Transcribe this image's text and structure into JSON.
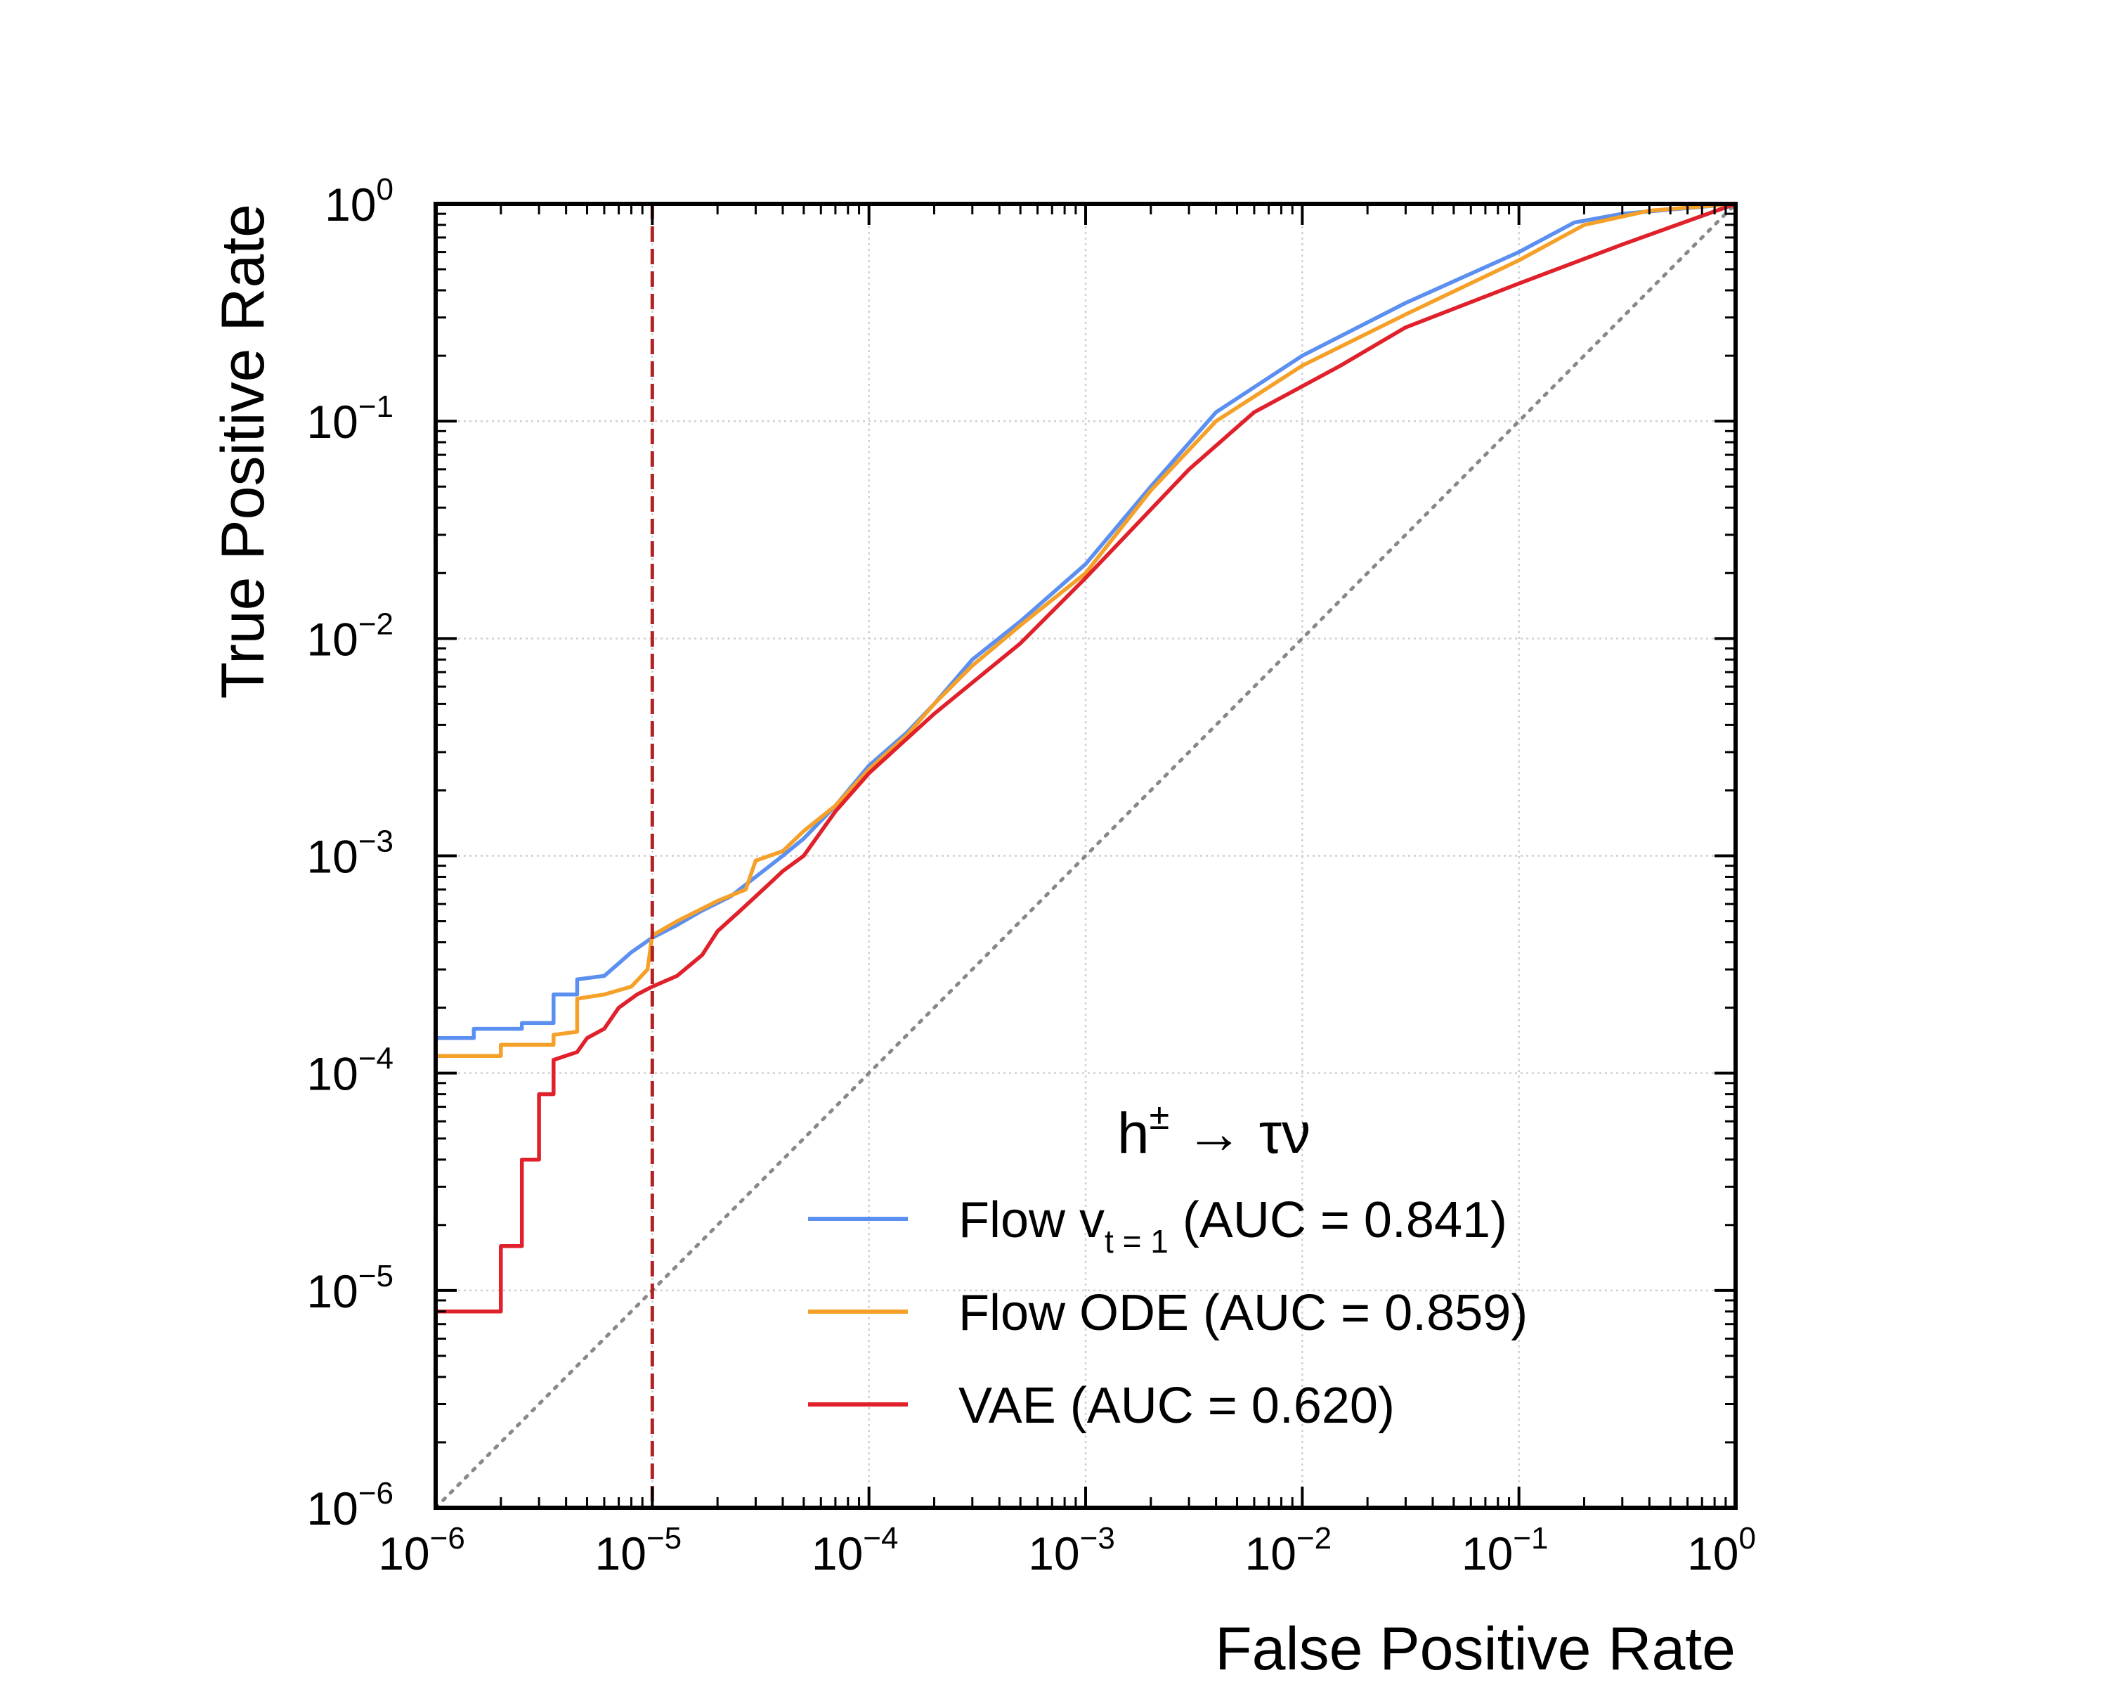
{
  "chart_data": {
    "type": "line",
    "title": "",
    "xlabel": "False Positive Rate",
    "ylabel": "True Positive Rate",
    "xscale": "log",
    "yscale": "log",
    "xlim": [
      1e-06,
      1
    ],
    "ylim": [
      1e-06,
      1
    ],
    "grid": true,
    "x_tick_exponents": [
      -6,
      -5,
      -4,
      -3,
      -2,
      -1,
      0
    ],
    "y_tick_exponents": [
      -6,
      -5,
      -4,
      -3,
      -2,
      -1,
      0
    ],
    "tick_base": "10",
    "legend": {
      "placement": "lower-right",
      "title_main": "h",
      "title_sup": "±",
      "title_rest": " → τν"
    },
    "reference_line": {
      "x": 1e-05,
      "color": "#b22222",
      "style": "dashed"
    },
    "diagonal": {
      "color": "#888888",
      "style": "dotted"
    },
    "series": [
      {
        "name": "Flow v",
        "name_sub": "t = 1",
        "name_suffix": " (AUC = 0.841)",
        "color": "#5b8ff0",
        "points": [
          [
            1e-06,
            0.000145
          ],
          [
            1.5e-06,
            0.000145
          ],
          [
            1.5e-06,
            0.00016
          ],
          [
            2.5e-06,
            0.00016
          ],
          [
            2.5e-06,
            0.00017
          ],
          [
            3.5e-06,
            0.00017
          ],
          [
            3.5e-06,
            0.00023
          ],
          [
            4.5e-06,
            0.00023
          ],
          [
            4.5e-06,
            0.00027
          ],
          [
            6e-06,
            0.00028
          ],
          [
            7e-06,
            0.00032
          ],
          [
            8e-06,
            0.00036
          ],
          [
            1e-05,
            0.00042
          ],
          [
            1.3e-05,
            0.00048
          ],
          [
            1.7e-05,
            0.00056
          ],
          [
            2.3e-05,
            0.00065
          ],
          [
            3e-05,
            0.0008
          ],
          [
            4e-05,
            0.001
          ],
          [
            5e-05,
            0.0012
          ],
          [
            7e-05,
            0.0017
          ],
          [
            0.0001,
            0.0026
          ],
          [
            0.00015,
            0.0037
          ],
          [
            0.0002,
            0.005
          ],
          [
            0.0003,
            0.008
          ],
          [
            0.0005,
            0.012
          ],
          [
            0.001,
            0.022
          ],
          [
            0.002,
            0.05
          ],
          [
            0.004,
            0.11
          ],
          [
            0.01,
            0.2
          ],
          [
            0.03,
            0.35
          ],
          [
            0.1,
            0.6
          ],
          [
            0.18,
            0.82
          ],
          [
            0.3,
            0.9
          ],
          [
            1,
            1
          ]
        ]
      },
      {
        "name": "Flow ODE",
        "name_sub": "",
        "name_suffix": " (AUC = 0.859)",
        "color": "#f5a028",
        "points": [
          [
            1e-06,
            0.00012
          ],
          [
            2e-06,
            0.00012
          ],
          [
            2e-06,
            0.000135
          ],
          [
            3.5e-06,
            0.000135
          ],
          [
            3.5e-06,
            0.00015
          ],
          [
            4.5e-06,
            0.000155
          ],
          [
            4.5e-06,
            0.00022
          ],
          [
            6e-06,
            0.00023
          ],
          [
            8e-06,
            0.00025
          ],
          [
            9.5e-06,
            0.0003
          ],
          [
            1e-05,
            0.00043
          ],
          [
            1.3e-05,
            0.0005
          ],
          [
            2e-05,
            0.00062
          ],
          [
            2.7e-05,
            0.0007
          ],
          [
            3e-05,
            0.00095
          ],
          [
            4e-05,
            0.00105
          ],
          [
            5e-05,
            0.0013
          ],
          [
            7e-05,
            0.0017
          ],
          [
            0.0001,
            0.0025
          ],
          [
            0.00015,
            0.0036
          ],
          [
            0.0002,
            0.005
          ],
          [
            0.0003,
            0.0075
          ],
          [
            0.0005,
            0.0115
          ],
          [
            0.001,
            0.02
          ],
          [
            0.002,
            0.048
          ],
          [
            0.004,
            0.1
          ],
          [
            0.01,
            0.18
          ],
          [
            0.03,
            0.31
          ],
          [
            0.1,
            0.55
          ],
          [
            0.2,
            0.8
          ],
          [
            0.4,
            0.93
          ],
          [
            1,
            1
          ]
        ]
      },
      {
        "name": "VAE",
        "name_sub": "",
        "name_suffix": " (AUC = 0.620)",
        "color": "#e0202a",
        "points": [
          [
            1e-06,
            8e-06
          ],
          [
            2e-06,
            8e-06
          ],
          [
            2e-06,
            1.6e-05
          ],
          [
            2.5e-06,
            1.6e-05
          ],
          [
            2.5e-06,
            4e-05
          ],
          [
            3e-06,
            4e-05
          ],
          [
            3e-06,
            8e-05
          ],
          [
            3.5e-06,
            8e-05
          ],
          [
            3.5e-06,
            0.000115
          ],
          [
            4.5e-06,
            0.000125
          ],
          [
            5e-06,
            0.000145
          ],
          [
            6e-06,
            0.00016
          ],
          [
            7e-06,
            0.0002
          ],
          [
            8.5e-06,
            0.00023
          ],
          [
            1e-05,
            0.00025
          ],
          [
            1.3e-05,
            0.00028
          ],
          [
            1.7e-05,
            0.00035
          ],
          [
            2e-05,
            0.00045
          ],
          [
            2.5e-05,
            0.00055
          ],
          [
            3e-05,
            0.00065
          ],
          [
            3.5e-05,
            0.00075
          ],
          [
            4e-05,
            0.00085
          ],
          [
            5e-05,
            0.001
          ],
          [
            7e-05,
            0.0016
          ],
          [
            0.0001,
            0.0024
          ],
          [
            0.0002,
            0.0045
          ],
          [
            0.0005,
            0.0095
          ],
          [
            0.001,
            0.019
          ],
          [
            0.003,
            0.06
          ],
          [
            0.006,
            0.11
          ],
          [
            0.015,
            0.18
          ],
          [
            0.03,
            0.27
          ],
          [
            0.1,
            0.43
          ],
          [
            0.3,
            0.65
          ],
          [
            1,
            1
          ]
        ]
      }
    ]
  }
}
